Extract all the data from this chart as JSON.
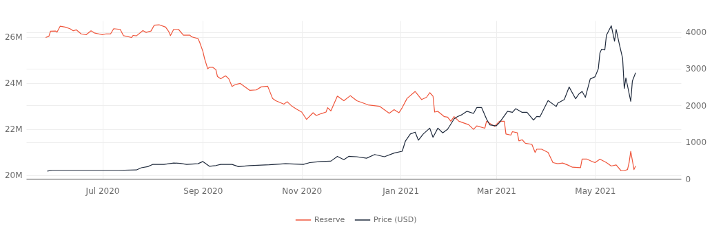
{
  "chart_data": {
    "type": "line",
    "xlim": [
      "2020-05-15",
      "2021-06-23"
    ],
    "xticks": [
      {
        "value": "2020-07-01",
        "label": "Jul 2020"
      },
      {
        "value": "2020-09-01",
        "label": "Sep 2020"
      },
      {
        "value": "2020-11-01",
        "label": "Nov 2020"
      },
      {
        "value": "2021-01-01",
        "label": "Jan 2021"
      },
      {
        "value": "2021-03-01",
        "label": "Mar 2021"
      },
      {
        "value": "2021-05-01",
        "label": "May 2021"
      }
    ],
    "ylim": [
      19850000,
      26700000
    ],
    "yticks": [
      {
        "value": 20000000,
        "label": "20M"
      },
      {
        "value": 22000000,
        "label": "22M"
      },
      {
        "value": 24000000,
        "label": "24M"
      },
      {
        "value": 26000000,
        "label": "26M"
      }
    ],
    "y2lim": [
      0,
      4310
    ],
    "y2ticks": [
      0,
      1000,
      2000,
      3000,
      4000
    ],
    "grid": true,
    "legend": "bottom",
    "line_style": "solid",
    "series": [
      {
        "name": "Reserve",
        "color": "#ef553b",
        "x": [
          "2020-05-27",
          "2020-05-29",
          "2020-05-30",
          "2020-06-02",
          "2020-06-03",
          "2020-06-05",
          "2020-06-08",
          "2020-06-11",
          "2020-06-13",
          "2020-06-15",
          "2020-06-18",
          "2020-06-21",
          "2020-06-24",
          "2020-06-26",
          "2020-07-01",
          "2020-07-03",
          "2020-07-06",
          "2020-07-08",
          "2020-07-12",
          "2020-07-14",
          "2020-07-19",
          "2020-07-20",
          "2020-07-22",
          "2020-07-26",
          "2020-07-28",
          "2020-07-31",
          "2020-08-02",
          "2020-08-05",
          "2020-08-09",
          "2020-08-11",
          "2020-08-12",
          "2020-08-14",
          "2020-08-17",
          "2020-08-20",
          "2020-08-24",
          "2020-08-25",
          "2020-08-29",
          "2020-08-30",
          "2020-09-01",
          "2020-09-02",
          "2020-09-04",
          "2020-09-05",
          "2020-09-07",
          "2020-09-09",
          "2020-09-10",
          "2020-09-12",
          "2020-09-15",
          "2020-09-17",
          "2020-09-19",
          "2020-09-21",
          "2020-09-24",
          "2020-09-30",
          "2020-10-04",
          "2020-10-07",
          "2020-10-11",
          "2020-10-14",
          "2020-10-16",
          "2020-10-21",
          "2020-10-23",
          "2020-10-26",
          "2020-10-29",
          "2020-11-01",
          "2020-11-04",
          "2020-11-08",
          "2020-11-10",
          "2020-11-13",
          "2020-11-16",
          "2020-11-17",
          "2020-11-19",
          "2020-11-23",
          "2020-11-27",
          "2020-12-01",
          "2020-12-05",
          "2020-12-12",
          "2020-12-19",
          "2020-12-25",
          "2020-12-28",
          "2020-12-31",
          "2021-01-02",
          "2021-01-05",
          "2021-01-10",
          "2021-01-14",
          "2021-01-17",
          "2021-01-19",
          "2021-01-21",
          "2021-01-22",
          "2021-01-24",
          "2021-01-28",
          "2021-01-30",
          "2021-02-01",
          "2021-02-03",
          "2021-02-06",
          "2021-02-12",
          "2021-02-15",
          "2021-02-17",
          "2021-02-22",
          "2021-02-23",
          "2021-02-28",
          "2021-03-03",
          "2021-03-06",
          "2021-03-07",
          "2021-03-10",
          "2021-03-11",
          "2021-03-14",
          "2021-03-15",
          "2021-03-17",
          "2021-03-19",
          "2021-03-23",
          "2021-03-25",
          "2021-03-26",
          "2021-03-29",
          "2021-04-02",
          "2021-04-05",
          "2021-04-08",
          "2021-04-11",
          "2021-04-14",
          "2021-04-17",
          "2021-04-22",
          "2021-04-23",
          "2021-04-26",
          "2021-04-29",
          "2021-05-01",
          "2021-05-04",
          "2021-05-08",
          "2021-05-11",
          "2021-05-14",
          "2021-05-17",
          "2021-05-19",
          "2021-05-21",
          "2021-05-22",
          "2021-05-23",
          "2021-05-25",
          "2021-05-26"
        ],
        "values": [
          25970000,
          26020000,
          26240000,
          26250000,
          26200000,
          26460000,
          26420000,
          26350000,
          26260000,
          26300000,
          26120000,
          26090000,
          26260000,
          26170000,
          26090000,
          26120000,
          26120000,
          26350000,
          26320000,
          26050000,
          25970000,
          26060000,
          26040000,
          26270000,
          26190000,
          26250000,
          26500000,
          26520000,
          26420000,
          26220000,
          26050000,
          26320000,
          26320000,
          26070000,
          26070000,
          26000000,
          25920000,
          25770000,
          25370000,
          25070000,
          24610000,
          24680000,
          24680000,
          24580000,
          24280000,
          24180000,
          24310000,
          24180000,
          23850000,
          23930000,
          23980000,
          23680000,
          23700000,
          23830000,
          23860000,
          23330000,
          23230000,
          23080000,
          23190000,
          22990000,
          22860000,
          22740000,
          22420000,
          22710000,
          22590000,
          22670000,
          22740000,
          22930000,
          22790000,
          23430000,
          23230000,
          23450000,
          23230000,
          23050000,
          22990000,
          22690000,
          22840000,
          22710000,
          22930000,
          23330000,
          23630000,
          23280000,
          23380000,
          23580000,
          23430000,
          22740000,
          22770000,
          22540000,
          22520000,
          22340000,
          22540000,
          22340000,
          22190000,
          21990000,
          22140000,
          22040000,
          22340000,
          22120000,
          22340000,
          22340000,
          21790000,
          21740000,
          21890000,
          21840000,
          21490000,
          21540000,
          21390000,
          21340000,
          20990000,
          21130000,
          21130000,
          20990000,
          20550000,
          20500000,
          20530000,
          20450000,
          20350000,
          20330000,
          20700000,
          20700000,
          20600000,
          20550000,
          20700000,
          20550000,
          20400000,
          20450000,
          20200000,
          20200000,
          20250000,
          20550000,
          21040000,
          20250000,
          20400000
        ]
      },
      {
        "name": "Price (USD)",
        "color": "#1f2a3c",
        "axis": "y2",
        "x": [
          "2020-05-28",
          "2020-05-31",
          "2020-06-14",
          "2020-06-27",
          "2020-07-11",
          "2020-07-22",
          "2020-07-25",
          "2020-07-29",
          "2020-08-01",
          "2020-08-08",
          "2020-08-14",
          "2020-08-18",
          "2020-08-22",
          "2020-08-29",
          "2020-09-01",
          "2020-09-05",
          "2020-09-09",
          "2020-09-12",
          "2020-09-19",
          "2020-09-23",
          "2020-09-30",
          "2020-10-12",
          "2020-10-22",
          "2020-11-02",
          "2020-11-06",
          "2020-11-13",
          "2020-11-19",
          "2020-11-23",
          "2020-11-27",
          "2020-11-30",
          "2020-12-05",
          "2020-12-11",
          "2020-12-16",
          "2020-12-22",
          "2020-12-28",
          "2021-01-02",
          "2021-01-04",
          "2021-01-07",
          "2021-01-10",
          "2021-01-12",
          "2021-01-15",
          "2021-01-19",
          "2021-01-21",
          "2021-01-24",
          "2021-01-27",
          "2021-01-30",
          "2021-02-03",
          "2021-02-05",
          "2021-02-08",
          "2021-02-11",
          "2021-02-15",
          "2021-02-17",
          "2021-02-20",
          "2021-02-23",
          "2021-02-25",
          "2021-03-01",
          "2021-03-03",
          "2021-03-08",
          "2021-03-11",
          "2021-03-13",
          "2021-03-17",
          "2021-03-20",
          "2021-03-24",
          "2021-03-26",
          "2021-03-28",
          "2021-04-02",
          "2021-04-07",
          "2021-04-08",
          "2021-04-12",
          "2021-04-15",
          "2021-04-19",
          "2021-04-21",
          "2021-04-23",
          "2021-04-25",
          "2021-04-28",
          "2021-05-01",
          "2021-05-03",
          "2021-05-04",
          "2021-05-05",
          "2021-05-07",
          "2021-05-08",
          "2021-05-11",
          "2021-05-13",
          "2021-05-14",
          "2021-05-16",
          "2021-05-18",
          "2021-05-19",
          "2021-05-20",
          "2021-05-23",
          "2021-05-24",
          "2021-05-26"
        ],
        "values": [
          210,
          230,
          230,
          230,
          230,
          240,
          300,
          330,
          390,
          390,
          430,
          420,
          390,
          410,
          470,
          340,
          360,
          390,
          390,
          330,
          360,
          380,
          410,
          390,
          440,
          470,
          480,
          610,
          520,
          610,
          600,
          560,
          660,
          600,
          700,
          750,
          1030,
          1220,
          1270,
          1050,
          1220,
          1380,
          1130,
          1380,
          1250,
          1350,
          1630,
          1690,
          1750,
          1840,
          1780,
          1940,
          1940,
          1630,
          1470,
          1440,
          1530,
          1840,
          1810,
          1910,
          1810,
          1810,
          1600,
          1700,
          1690,
          2130,
          1970,
          2060,
          2160,
          2500,
          2180,
          2310,
          2380,
          2220,
          2720,
          2780,
          3000,
          3430,
          3530,
          3510,
          3910,
          4170,
          3750,
          4070,
          3660,
          3280,
          2460,
          2750,
          2110,
          2660,
          2890
        ]
      }
    ]
  }
}
